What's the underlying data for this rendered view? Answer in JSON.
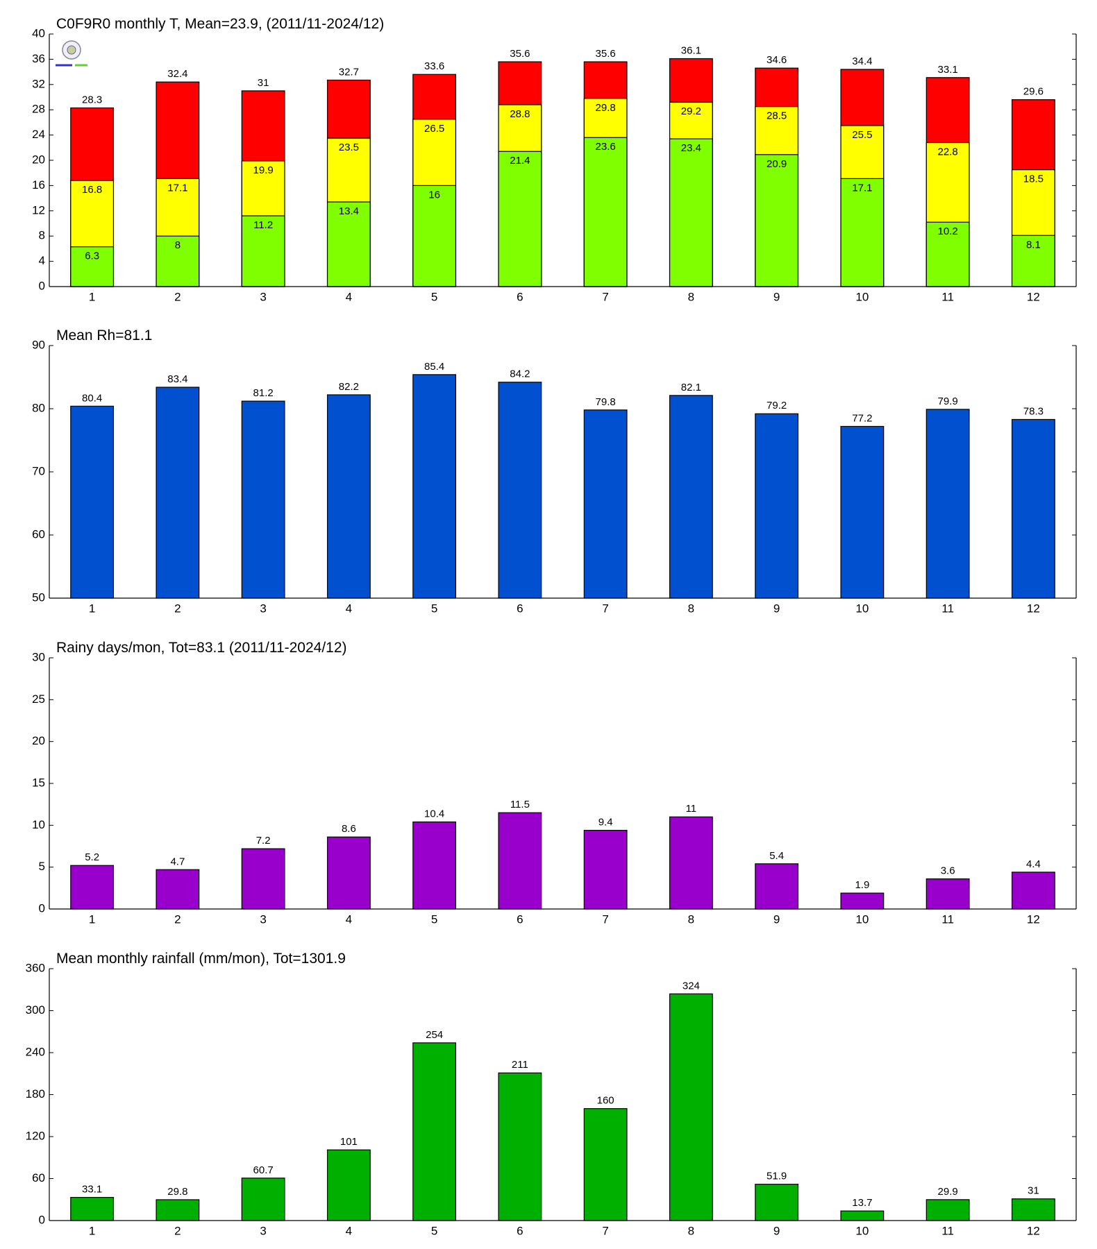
{
  "chart_data": [
    {
      "type": "bar",
      "barmode": "overlay",
      "title": "C0F9R0 monthly T, Mean=23.9, (2011/11-2024/12)",
      "categories": [
        "1",
        "2",
        "3",
        "4",
        "5",
        "6",
        "7",
        "8",
        "9",
        "10",
        "11",
        "12"
      ],
      "series": [
        {
          "color": "#ff0000",
          "values": [
            28.3,
            32.4,
            31,
            32.7,
            33.6,
            35.6,
            35.6,
            36.1,
            34.6,
            34.4,
            33.1,
            29.6
          ]
        },
        {
          "color": "#ffff00",
          "values": [
            16.8,
            17.1,
            19.9,
            23.5,
            26.5,
            28.8,
            29.8,
            29.2,
            28.5,
            25.5,
            22.8,
            18.5
          ]
        },
        {
          "color": "#80ff00",
          "values": [
            6.3,
            8,
            11.2,
            13.4,
            16,
            21.4,
            23.6,
            23.4,
            20.9,
            17.1,
            10.2,
            8.1
          ]
        }
      ],
      "ylim": [
        0,
        40
      ],
      "yticks": [
        0,
        4,
        8,
        12,
        16,
        20,
        24,
        28,
        32,
        36,
        40
      ]
    },
    {
      "type": "bar",
      "title": "Mean Rh=81.1",
      "categories": [
        "1",
        "2",
        "3",
        "4",
        "5",
        "6",
        "7",
        "8",
        "9",
        "10",
        "11",
        "12"
      ],
      "series": [
        {
          "color": "#0050d0",
          "values": [
            80.4,
            83.4,
            81.2,
            82.2,
            85.4,
            84.2,
            79.8,
            82.1,
            79.2,
            77.2,
            79.9,
            78.3
          ]
        }
      ],
      "ylim": [
        50,
        90
      ],
      "yticks": [
        50,
        60,
        70,
        80,
        90
      ]
    },
    {
      "type": "bar",
      "title": "Rainy days/mon, Tot=83.1 (2011/11-2024/12)",
      "categories": [
        "1",
        "2",
        "3",
        "4",
        "5",
        "6",
        "7",
        "8",
        "9",
        "10",
        "11",
        "12"
      ],
      "series": [
        {
          "color": "#9900cc",
          "values": [
            5.2,
            4.7,
            7.2,
            8.6,
            10.4,
            11.5,
            9.4,
            11,
            5.4,
            1.9,
            3.6,
            4.4
          ]
        }
      ],
      "ylim": [
        0,
        30
      ],
      "yticks": [
        0,
        5,
        10,
        15,
        20,
        25,
        30
      ]
    },
    {
      "type": "bar",
      "title": "Mean monthly rainfall (mm/mon), Tot=1301.9",
      "categories": [
        "1",
        "2",
        "3",
        "4",
        "5",
        "6",
        "7",
        "8",
        "9",
        "10",
        "11",
        "12"
      ],
      "series": [
        {
          "color": "#00b000",
          "values": [
            33.1,
            29.8,
            60.7,
            101,
            254,
            211,
            160,
            324,
            51.9,
            13.7,
            29.9,
            31
          ]
        }
      ],
      "ylim": [
        0,
        360
      ],
      "yticks": [
        0,
        60,
        120,
        180,
        240,
        300,
        360
      ]
    }
  ]
}
